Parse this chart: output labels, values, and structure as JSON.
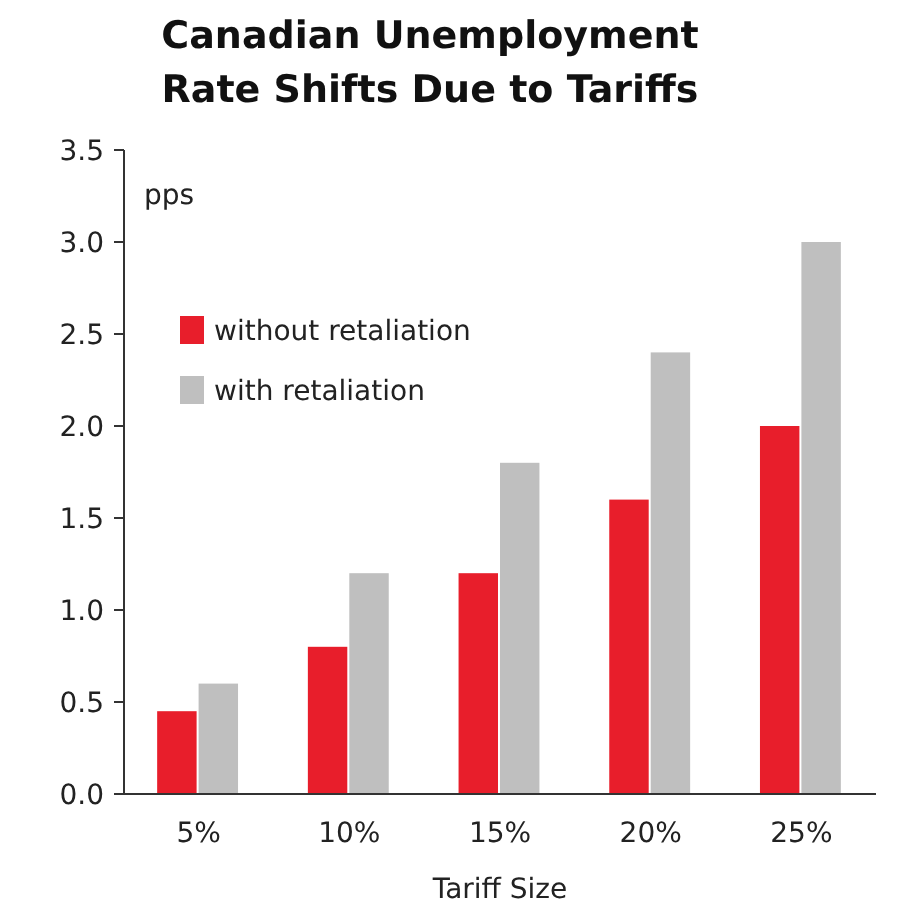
{
  "chart_data": {
    "type": "bar",
    "title": "Canadian Unemployment\nRate Shifts Due to Tariffs",
    "ylabel": "pps",
    "xlabel": "Tariff Size",
    "categories": [
      "5%",
      "10%",
      "15%",
      "20%",
      "25%"
    ],
    "series": [
      {
        "name": "without retaliation",
        "color": "#e81e2b",
        "values": [
          0.45,
          0.8,
          1.2,
          1.6,
          2.0
        ]
      },
      {
        "name": "with retaliation",
        "color": "#bfbfbf",
        "values": [
          0.6,
          1.2,
          1.8,
          2.4,
          3.0
        ]
      }
    ],
    "ylim": [
      0,
      3.5
    ],
    "yticks": [
      {
        "value": 0,
        "label": "0.0"
      },
      {
        "value": 0.5,
        "label": "0.5"
      },
      {
        "value": 1,
        "label": "1.0"
      },
      {
        "value": 1.5,
        "label": "1.5"
      },
      {
        "value": 2,
        "label": "2.0"
      },
      {
        "value": 2.5,
        "label": "2.5"
      },
      {
        "value": 3,
        "label": "3.0"
      },
      {
        "value": 3.5,
        "label": "3.5"
      }
    ],
    "legend": "top left"
  }
}
